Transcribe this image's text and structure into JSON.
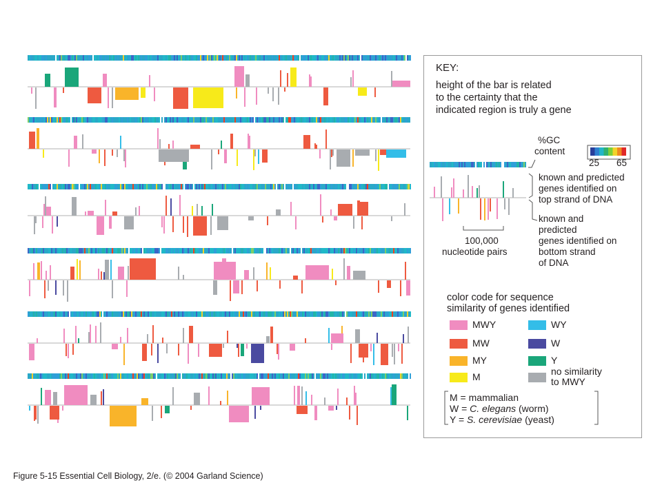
{
  "key": {
    "title": "KEY:",
    "height_note": [
      "height of the bar is related",
      "to the certainty that the",
      "indicated region is truly a gene"
    ],
    "gc_label": [
      "%GC",
      "content"
    ],
    "gc_scale": {
      "min_label": "25",
      "max_label": "65"
    },
    "top_strand_label": [
      "known and predicted",
      "genes identified on",
      "top strand of DNA"
    ],
    "bottom_strand_label": [
      "known and",
      "predicted",
      "genes identified on",
      "bottom strand",
      "of DNA"
    ],
    "scale_bar_label": [
      "100,000",
      "nucleotide pairs"
    ],
    "color_code_title": [
      "color code for sequence",
      "similarity of genes identified"
    ],
    "legend": [
      {
        "label": "MWY",
        "color": "#f08cc0"
      },
      {
        "label": "MW",
        "color": "#ee5a40"
      },
      {
        "label": "MY",
        "color": "#f9b42a"
      },
      {
        "label": "M",
        "color": "#f7ea1a"
      },
      {
        "label": "WY",
        "color": "#33bde8"
      },
      {
        "label": "W",
        "color": "#4a4aa0"
      },
      {
        "label": "Y",
        "color": "#1aa67a"
      },
      {
        "label": "no similarity",
        "label2": "to MWY",
        "color": "#a8acb0"
      }
    ],
    "abbreviations": [
      {
        "prefix": "M = ",
        "italic": "",
        "suffix": "mammalian"
      },
      {
        "prefix": "W = ",
        "italic": "C. elegans",
        "suffix": " (worm)"
      },
      {
        "prefix": "Y = ",
        "italic": "S. cerevisiae",
        "suffix": " (yeast)"
      }
    ]
  },
  "caption": "Figure 5-15   Essential Cell Biology, 2/e. (© 2004 Garland Science)",
  "colors": {
    "gc_low": "#2a4fb0",
    "gc_mid": "#20b8c8",
    "gc_high": "#f04020",
    "axis": "#b0b0b0"
  }
}
